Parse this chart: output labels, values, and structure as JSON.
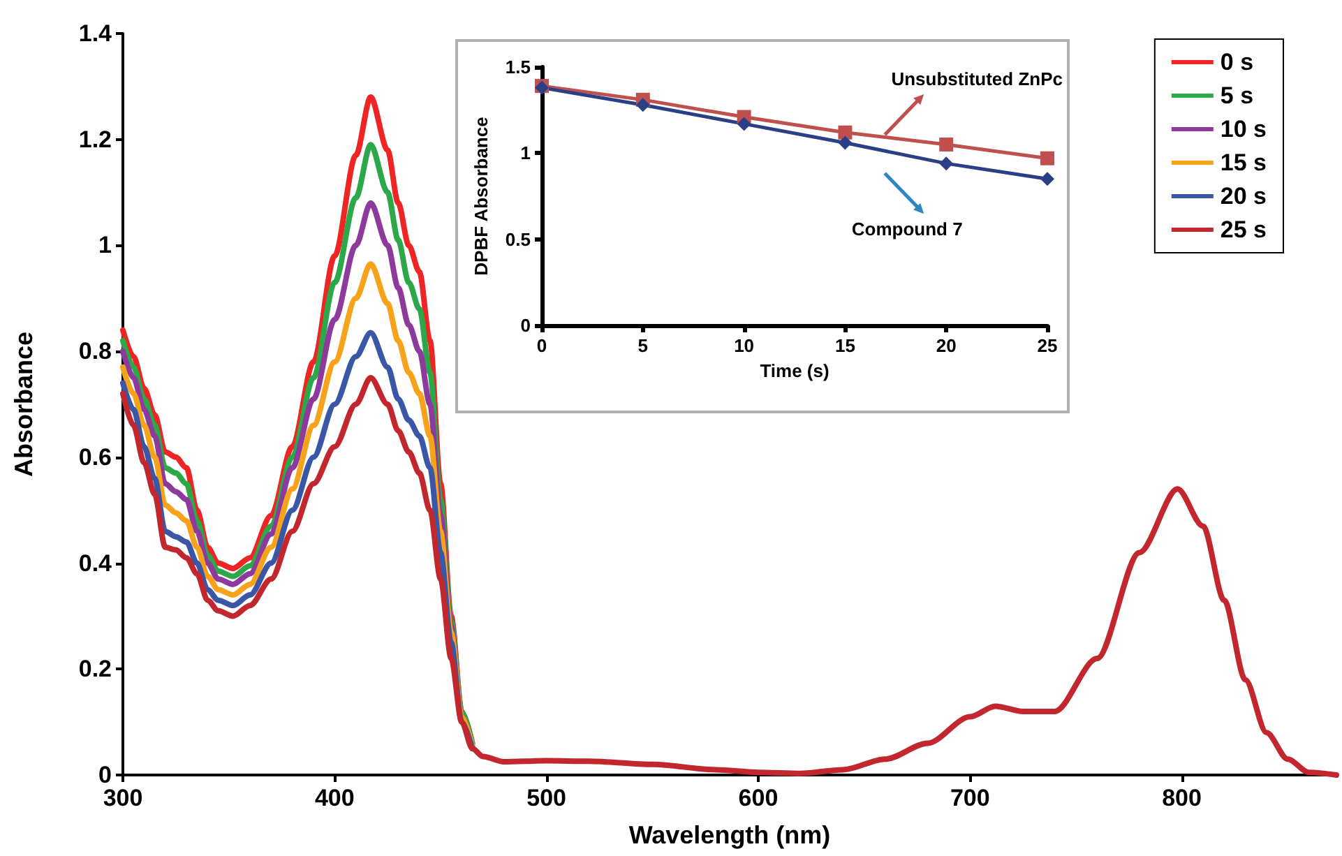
{
  "chart_data": [
    {
      "type": "line",
      "xlabel": "Wavelength (nm)",
      "ylabel": "Absorbance",
      "xlim": [
        300,
        873
      ],
      "xticks": [
        300,
        400,
        500,
        600,
        700,
        800
      ],
      "ylim": [
        0,
        1.4
      ],
      "yticks": [
        0,
        0.2,
        0.4,
        0.6,
        0.8,
        1,
        1.2,
        1.4
      ],
      "grid": false,
      "legend": "top right",
      "marker": "none",
      "x": [
        300,
        305,
        310,
        315,
        320,
        325,
        330,
        335,
        340,
        345,
        352,
        360,
        370,
        380,
        390,
        400,
        410,
        417,
        425,
        430,
        435,
        440,
        445,
        450,
        455,
        460,
        465,
        470,
        480,
        500,
        520,
        550,
        580,
        600,
        620,
        640,
        660,
        680,
        700,
        712,
        725,
        740,
        760,
        780,
        798,
        810,
        820,
        830,
        840,
        850,
        860,
        873
      ],
      "series": [
        {
          "name": "0 s",
          "color": "#ee2524",
          "values": [
            0.84,
            0.79,
            0.73,
            0.68,
            0.61,
            0.6,
            0.58,
            0.5,
            0.43,
            0.4,
            0.39,
            0.41,
            0.49,
            0.62,
            0.78,
            0.98,
            1.17,
            1.28,
            1.18,
            1.08,
            1.0,
            0.95,
            0.82,
            0.55,
            0.3,
            0.12,
            0.06,
            null,
            null,
            null,
            null,
            null,
            null,
            null,
            null,
            null,
            null,
            null,
            null,
            null,
            null,
            null,
            null,
            null,
            null,
            null,
            null,
            null,
            null,
            null,
            null,
            null
          ]
        },
        {
          "name": "5 s",
          "color": "#2ca84a",
          "values": [
            0.82,
            0.77,
            0.71,
            0.66,
            0.58,
            0.57,
            0.55,
            0.48,
            0.415,
            0.385,
            0.375,
            0.395,
            0.47,
            0.6,
            0.75,
            0.93,
            1.09,
            1.19,
            1.1,
            1.01,
            0.93,
            0.88,
            0.76,
            0.52,
            0.29,
            0.12,
            0.06,
            null,
            null,
            null,
            null,
            null,
            null,
            null,
            null,
            null,
            null,
            null,
            null,
            null,
            null,
            null,
            null,
            null,
            null,
            null,
            null,
            null,
            null,
            null,
            null,
            null
          ]
        },
        {
          "name": "10 s",
          "color": "#8e3a9c",
          "values": [
            0.8,
            0.75,
            0.69,
            0.64,
            0.55,
            0.535,
            0.52,
            0.46,
            0.4,
            0.37,
            0.36,
            0.38,
            0.455,
            0.58,
            0.71,
            0.86,
            1.0,
            1.08,
            1.0,
            0.92,
            0.85,
            0.8,
            0.7,
            0.49,
            0.28,
            0.11,
            0.055,
            null,
            null,
            null,
            null,
            null,
            null,
            null,
            null,
            null,
            null,
            null,
            null,
            null,
            null,
            null,
            null,
            null,
            null,
            null,
            null,
            null,
            null,
            null,
            null,
            null
          ]
        },
        {
          "name": "15 s",
          "color": "#f7a21b",
          "values": [
            0.77,
            0.72,
            0.66,
            0.6,
            0.51,
            0.495,
            0.48,
            0.43,
            0.375,
            0.35,
            0.34,
            0.36,
            0.43,
            0.54,
            0.66,
            0.78,
            0.9,
            0.965,
            0.89,
            0.82,
            0.76,
            0.72,
            0.64,
            0.46,
            0.27,
            0.11,
            0.055,
            null,
            null,
            null,
            null,
            null,
            null,
            null,
            null,
            null,
            null,
            null,
            null,
            null,
            null,
            null,
            null,
            null,
            null,
            null,
            null,
            null,
            null,
            null,
            null,
            null
          ]
        },
        {
          "name": "20 s",
          "color": "#3a57a7",
          "values": [
            0.74,
            0.69,
            0.62,
            0.56,
            0.46,
            0.45,
            0.44,
            0.4,
            0.35,
            0.33,
            0.32,
            0.34,
            0.4,
            0.5,
            0.6,
            0.7,
            0.79,
            0.835,
            0.77,
            0.71,
            0.67,
            0.64,
            0.58,
            0.42,
            0.25,
            0.1,
            0.05,
            null,
            null,
            null,
            null,
            null,
            null,
            null,
            null,
            null,
            null,
            null,
            null,
            null,
            null,
            null,
            null,
            null,
            null,
            null,
            null,
            null,
            null,
            null,
            null,
            null
          ]
        },
        {
          "name": "25 s",
          "color": "#c1272d",
          "values": [
            0.72,
            0.66,
            0.59,
            0.53,
            0.43,
            0.425,
            0.41,
            0.38,
            0.33,
            0.31,
            0.3,
            0.32,
            0.37,
            0.46,
            0.55,
            0.62,
            0.7,
            0.75,
            0.7,
            0.65,
            0.61,
            0.57,
            0.5,
            0.37,
            0.22,
            0.1,
            0.05,
            0.035,
            0.025,
            0.027,
            0.026,
            0.02,
            0.01,
            0.005,
            0.003,
            0.01,
            0.03,
            0.06,
            0.11,
            0.13,
            0.12,
            0.12,
            0.22,
            0.42,
            0.54,
            0.47,
            0.33,
            0.18,
            0.08,
            0.03,
            0.005,
            0
          ]
        }
      ]
    },
    {
      "type": "line",
      "xlabel": "Time (s)",
      "ylabel": "DPBF Absorbance",
      "xlim": [
        0,
        25
      ],
      "xticks": [
        0,
        5,
        10,
        15,
        20,
        25
      ],
      "ylim": [
        0,
        1.5
      ],
      "yticks": [
        0,
        0.5,
        1,
        1.5
      ],
      "grid": false,
      "legend": false,
      "x": [
        0,
        5,
        10,
        15,
        20,
        25
      ],
      "series": [
        {
          "name": "Unsubstituted ZnPc",
          "color": "#c0504d",
          "marker": "square",
          "values": [
            1.39,
            1.31,
            1.21,
            1.12,
            1.05,
            0.97
          ]
        },
        {
          "name": "Compound 7",
          "color": "#2b3f86",
          "marker": "diamond",
          "values": [
            1.38,
            1.28,
            1.17,
            1.06,
            0.94,
            0.85
          ]
        }
      ]
    }
  ]
}
